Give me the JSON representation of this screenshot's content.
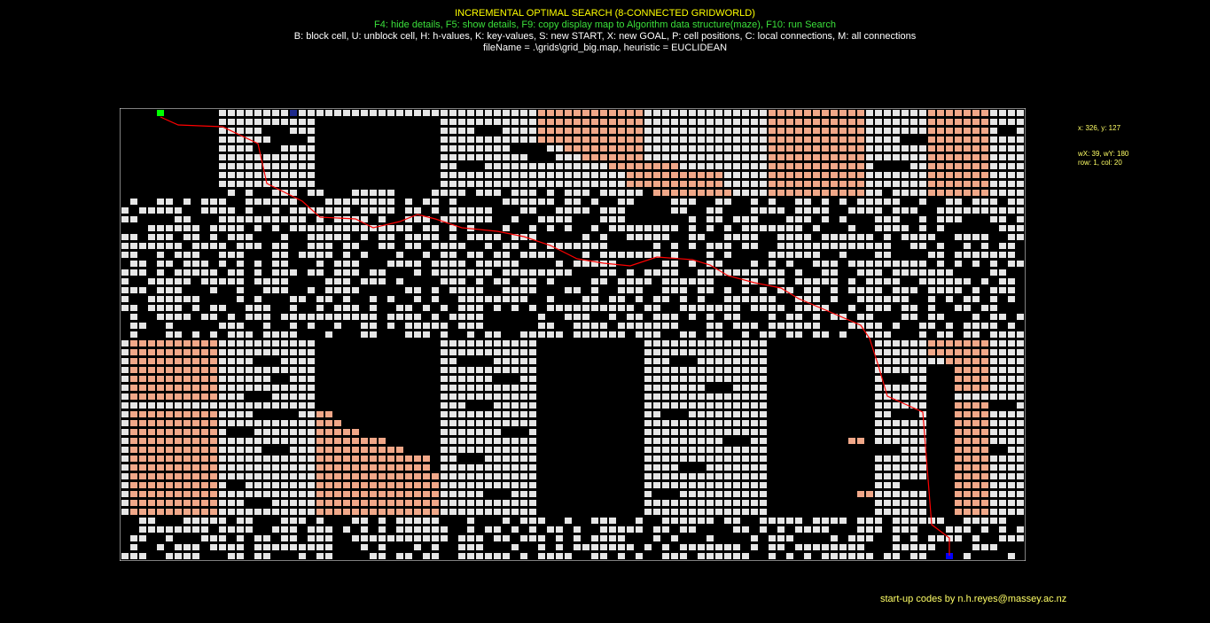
{
  "header": {
    "title": "INCREMENTAL OPTIMAL SEARCH (8-CONNECTED GRIDWORLD)",
    "function_keys": "F4: hide details, F5: show details, F9: copy display map to Algorithm data structure(maze), F10: run Search",
    "key_help": "B: block cell, U: unblock cell, H: h-values, K: key-values, S: new START, X: new GOAL, P: cell positions, C: local connections, M: all connections",
    "file_info": "fileName = .\\grids\\grid_big.map, heuristic = EUCLIDEAN"
  },
  "info_panel": {
    "mouse": "x: 326, y: 127",
    "world": "wX: 39, wY: 180",
    "cell": "row: 1, col: 20"
  },
  "footer": {
    "credit": "start-up codes by n.h.reyes@massey.ac.nz"
  },
  "grid": {
    "rows": 51,
    "cols": 102,
    "colors": {
      "unblocked": "#e6e6e6",
      "blocked": "#000000",
      "expanded": "#f0a788",
      "start": "#00ff00",
      "goal": "#0000ff",
      "path": "#ff0000",
      "cell_border": "#000000",
      "frame": "#ffffff"
    },
    "start_cell": {
      "row": 0,
      "col": 4
    },
    "goal_cell": {
      "row": 50,
      "col": 93
    },
    "marker_cell": {
      "row": 0,
      "col": 19
    }
  }
}
